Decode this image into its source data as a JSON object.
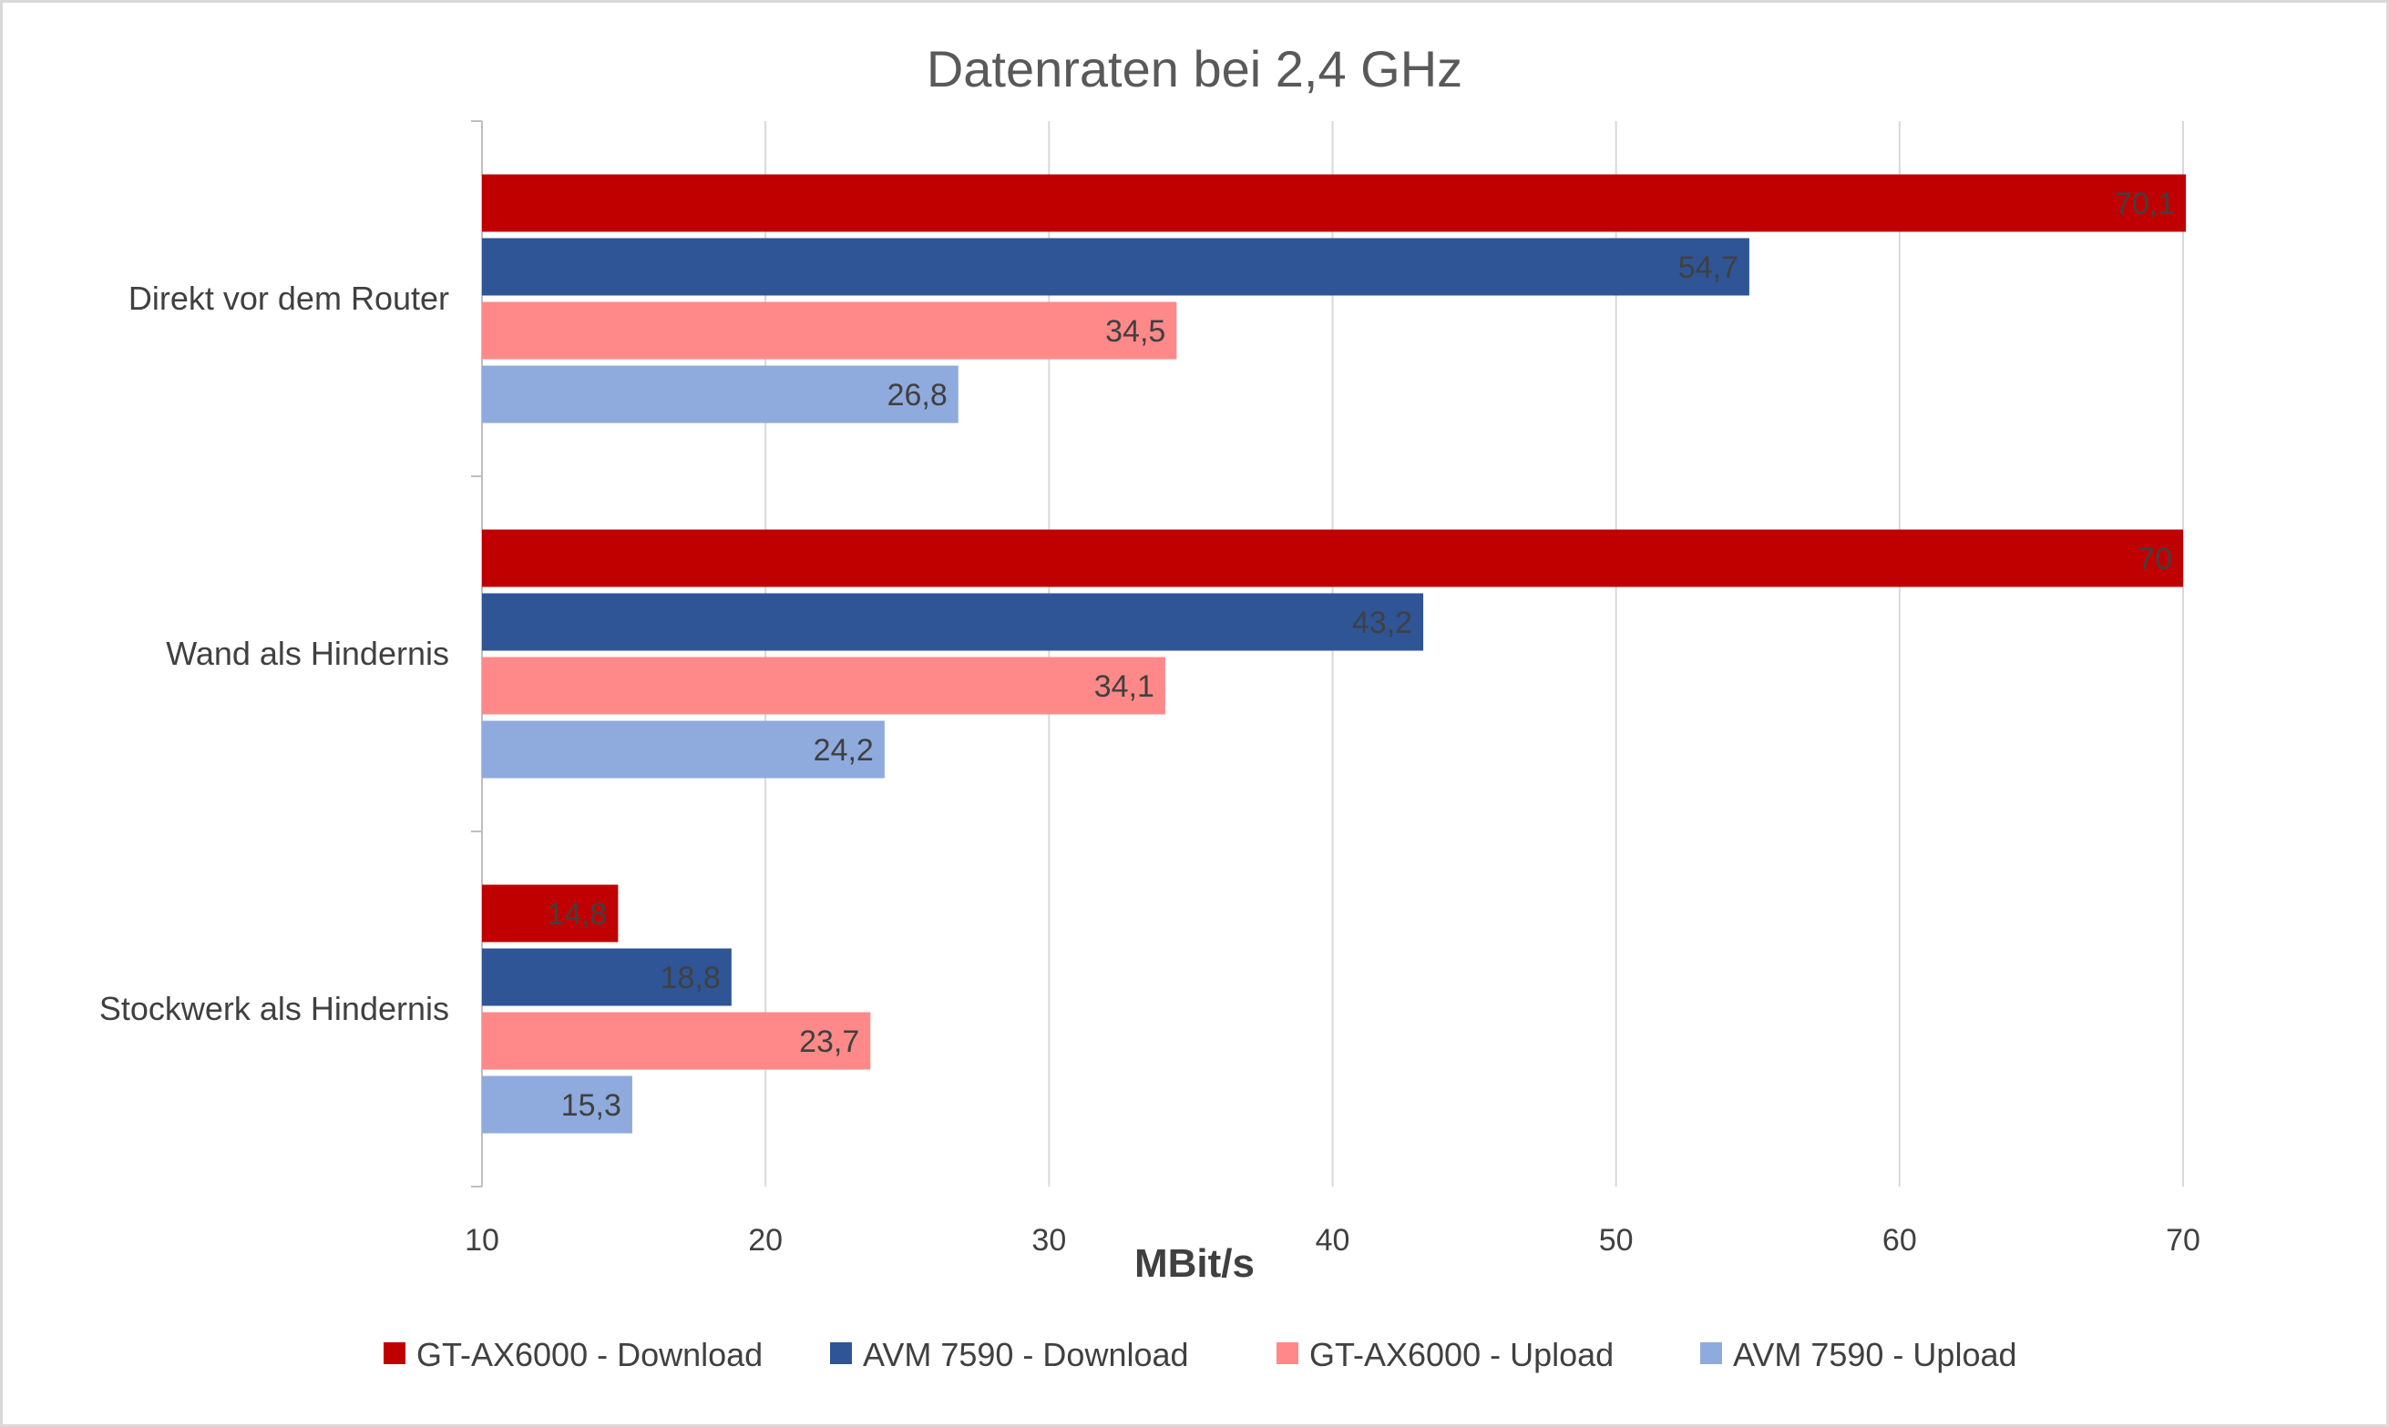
{
  "chart_data": {
    "type": "bar",
    "orientation": "horizontal",
    "title": "Datenraten bei 2,4 GHz",
    "xlabel": "MBit/s",
    "ylabel": "",
    "xlim": [
      10,
      70
    ],
    "xticks": [
      10,
      20,
      30,
      40,
      50,
      60,
      70
    ],
    "grid": true,
    "legend_position": "bottom",
    "categories": [
      "Direkt vor dem Router",
      "Wand als Hindernis",
      "Stockwerk als Hindernis"
    ],
    "series": [
      {
        "name": "GT-AX6000 - Download",
        "color": "#c00000",
        "values": [
          70.1,
          70,
          14.8
        ],
        "labels": [
          "70,1",
          "70",
          "14,8"
        ]
      },
      {
        "name": "AVM 7590 - Download",
        "color": "#2f5597",
        "values": [
          54.7,
          43.2,
          18.8
        ],
        "labels": [
          "54,7",
          "43,2",
          "18,8"
        ]
      },
      {
        "name": "GT-AX6000 - Upload",
        "color": "#ff8989",
        "values": [
          34.5,
          34.1,
          23.7
        ],
        "labels": [
          "34,5",
          "34,1",
          "23,7"
        ]
      },
      {
        "name": "AVM 7590 - Upload",
        "color": "#8faadc",
        "values": [
          26.8,
          24.2,
          15.3
        ],
        "labels": [
          "26,8",
          "24,2",
          "15,3"
        ]
      }
    ],
    "colors": {
      "gridline": "#d9d9d9",
      "axis": "#bfbfbf",
      "text": "#404040",
      "title": "#595959"
    }
  }
}
